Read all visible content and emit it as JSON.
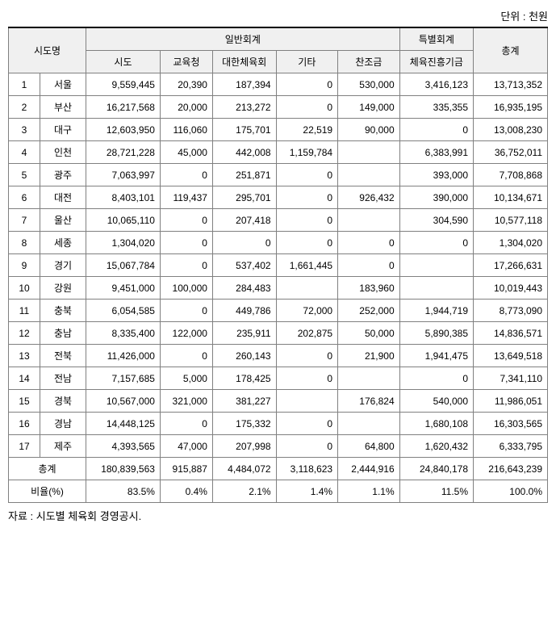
{
  "unit_label": "단위 : 천원",
  "headers": {
    "region_col": "시도명",
    "general_account": "일반회계",
    "special_account": "특별회계",
    "total": "총계",
    "sub": {
      "sido": "시도",
      "edu": "교육청",
      "ksc": "대한체육회",
      "etc": "기타",
      "chanjo": "찬조금",
      "fund": "체육진흥기금"
    }
  },
  "rows": [
    {
      "idx": "1",
      "region": "서울",
      "sido": "9,559,445",
      "edu": "20,390",
      "ksc": "187,394",
      "etc": "0",
      "chanjo": "530,000",
      "fund": "3,416,123",
      "total": "13,713,352"
    },
    {
      "idx": "2",
      "region": "부산",
      "sido": "16,217,568",
      "edu": "20,000",
      "ksc": "213,272",
      "etc": "0",
      "chanjo": "149,000",
      "fund": "335,355",
      "total": "16,935,195"
    },
    {
      "idx": "3",
      "region": "대구",
      "sido": "12,603,950",
      "edu": "116,060",
      "ksc": "175,701",
      "etc": "22,519",
      "chanjo": "90,000",
      "fund": "0",
      "total": "13,008,230"
    },
    {
      "idx": "4",
      "region": "인천",
      "sido": "28,721,228",
      "edu": "45,000",
      "ksc": "442,008",
      "etc": "1,159,784",
      "chanjo": "",
      "fund": "6,383,991",
      "total": "36,752,011"
    },
    {
      "idx": "5",
      "region": "광주",
      "sido": "7,063,997",
      "edu": "0",
      "ksc": "251,871",
      "etc": "0",
      "chanjo": "",
      "fund": "393,000",
      "total": "7,708,868"
    },
    {
      "idx": "6",
      "region": "대전",
      "sido": "8,403,101",
      "edu": "119,437",
      "ksc": "295,701",
      "etc": "0",
      "chanjo": "926,432",
      "fund": "390,000",
      "total": "10,134,671"
    },
    {
      "idx": "7",
      "region": "울산",
      "sido": "10,065,110",
      "edu": "0",
      "ksc": "207,418",
      "etc": "0",
      "chanjo": "",
      "fund": "304,590",
      "total": "10,577,118"
    },
    {
      "idx": "8",
      "region": "세종",
      "sido": "1,304,020",
      "edu": "0",
      "ksc": "0",
      "etc": "0",
      "chanjo": "0",
      "fund": "0",
      "total": "1,304,020"
    },
    {
      "idx": "9",
      "region": "경기",
      "sido": "15,067,784",
      "edu": "0",
      "ksc": "537,402",
      "etc": "1,661,445",
      "chanjo": "0",
      "fund": "",
      "total": "17,266,631"
    },
    {
      "idx": "10",
      "region": "강원",
      "sido": "9,451,000",
      "edu": "100,000",
      "ksc": "284,483",
      "etc": "",
      "chanjo": "183,960",
      "fund": "",
      "total": "10,019,443"
    },
    {
      "idx": "11",
      "region": "충북",
      "sido": "6,054,585",
      "edu": "0",
      "ksc": "449,786",
      "etc": "72,000",
      "chanjo": "252,000",
      "fund": "1,944,719",
      "total": "8,773,090"
    },
    {
      "idx": "12",
      "region": "충남",
      "sido": "8,335,400",
      "edu": "122,000",
      "ksc": "235,911",
      "etc": "202,875",
      "chanjo": "50,000",
      "fund": "5,890,385",
      "total": "14,836,571"
    },
    {
      "idx": "13",
      "region": "전북",
      "sido": "11,426,000",
      "edu": "0",
      "ksc": "260,143",
      "etc": "0",
      "chanjo": "21,900",
      "fund": "1,941,475",
      "total": "13,649,518"
    },
    {
      "idx": "14",
      "region": "전남",
      "sido": "7,157,685",
      "edu": "5,000",
      "ksc": "178,425",
      "etc": "0",
      "chanjo": "",
      "fund": "0",
      "total": "7,341,110"
    },
    {
      "idx": "15",
      "region": "경북",
      "sido": "10,567,000",
      "edu": "321,000",
      "ksc": "381,227",
      "etc": "",
      "chanjo": "176,824",
      "fund": "540,000",
      "total": "11,986,051"
    },
    {
      "idx": "16",
      "region": "경남",
      "sido": "14,448,125",
      "edu": "0",
      "ksc": "175,332",
      "etc": "0",
      "chanjo": "",
      "fund": "1,680,108",
      "total": "16,303,565"
    },
    {
      "idx": "17",
      "region": "제주",
      "sido": "4,393,565",
      "edu": "47,000",
      "ksc": "207,998",
      "etc": "0",
      "chanjo": "64,800",
      "fund": "1,620,432",
      "total": "6,333,795"
    }
  ],
  "totals": {
    "label": "총계",
    "sido": "180,839,563",
    "edu": "915,887",
    "ksc": "4,484,072",
    "etc": "3,118,623",
    "chanjo": "2,444,916",
    "fund": "24,840,178",
    "total": "216,643,239"
  },
  "ratio": {
    "label": "비율(%)",
    "sido": "83.5%",
    "edu": "0.4%",
    "ksc": "2.1%",
    "etc": "1.4%",
    "chanjo": "1.1%",
    "fund": "11.5%",
    "total": "100.0%"
  },
  "source_note": "자료 : 시도별 체육회 경영공시."
}
